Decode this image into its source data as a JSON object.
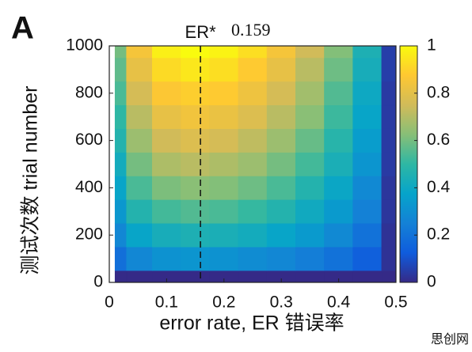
{
  "chart_data": {
    "type": "heatmap",
    "panel_label": "A",
    "xlabel": "error rate, ER  错误率",
    "ylabel": "测试次数  trial number",
    "marker": {
      "label": "ER*",
      "value": 0.159
    },
    "watermark": "思创网",
    "x": [
      0.01,
      0.05,
      0.1,
      0.15,
      0.2,
      0.25,
      0.3,
      0.35,
      0.4,
      0.45,
      0.5
    ],
    "y": [
      0,
      100,
      200,
      300,
      400,
      500,
      600,
      700,
      800,
      900,
      1000
    ],
    "z": [
      [
        0,
        0,
        0,
        0,
        0,
        0,
        0,
        0,
        0,
        0,
        0
      ],
      [
        0.19,
        0.27,
        0.31,
        0.32,
        0.31,
        0.29,
        0.27,
        0.24,
        0.2,
        0.14,
        0.02
      ],
      [
        0.27,
        0.38,
        0.43,
        0.45,
        0.44,
        0.42,
        0.38,
        0.34,
        0.28,
        0.2,
        0.02
      ],
      [
        0.33,
        0.47,
        0.53,
        0.55,
        0.54,
        0.51,
        0.47,
        0.41,
        0.34,
        0.25,
        0.03
      ],
      [
        0.38,
        0.54,
        0.61,
        0.63,
        0.62,
        0.59,
        0.54,
        0.47,
        0.39,
        0.28,
        0.03
      ],
      [
        0.42,
        0.6,
        0.69,
        0.71,
        0.69,
        0.66,
        0.6,
        0.53,
        0.44,
        0.32,
        0.04
      ],
      [
        0.47,
        0.66,
        0.75,
        0.78,
        0.76,
        0.72,
        0.66,
        0.58,
        0.48,
        0.35,
        0.04
      ],
      [
        0.5,
        0.71,
        0.81,
        0.84,
        0.82,
        0.78,
        0.71,
        0.63,
        0.52,
        0.38,
        0.04
      ],
      [
        0.54,
        0.76,
        0.87,
        0.89,
        0.88,
        0.83,
        0.76,
        0.67,
        0.55,
        0.4,
        0.04
      ],
      [
        0.57,
        0.81,
        0.92,
        0.95,
        0.93,
        0.88,
        0.81,
        0.71,
        0.59,
        0.43,
        0.05
      ],
      [
        0.6,
        0.85,
        0.97,
        1,
        0.98,
        0.93,
        0.85,
        0.75,
        0.62,
        0.45,
        0.05
      ]
    ],
    "xlim": [
      0,
      0.5
    ],
    "xticks": [
      0,
      0.1,
      0.2,
      0.3,
      0.4,
      0.5
    ],
    "ylim": [
      0,
      1000
    ],
    "yticks": [
      0,
      200,
      400,
      600,
      800,
      1000
    ],
    "clim": [
      0,
      1
    ],
    "cticks": [
      0,
      0.2,
      0.4,
      0.6,
      0.8,
      1
    ],
    "colormap": [
      "#352a87",
      "#0f5cdd",
      "#1481d6",
      "#06a4ca",
      "#2eb7a4",
      "#87bf77",
      "#d1bb59",
      "#fec832",
      "#f9fb0e"
    ]
  }
}
